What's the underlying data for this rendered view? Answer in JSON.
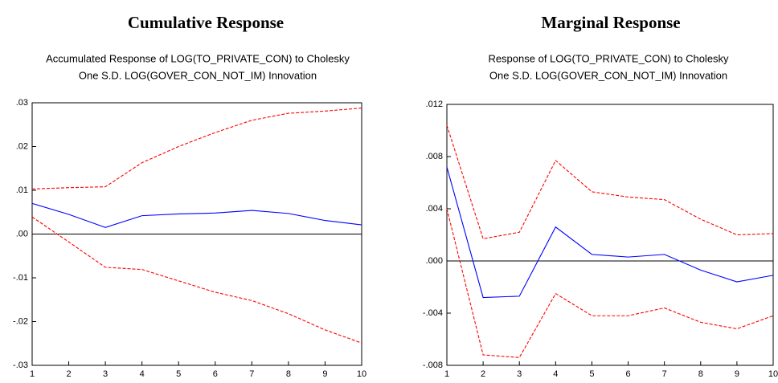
{
  "chart_data": [
    {
      "type": "line",
      "title": "Cumulative Response",
      "subtitle": [
        "Accumulated Response of LOG(TO_PRIVATE_CON) to Cholesky",
        "One S.D. LOG(GOVER_CON_NOT_IM) Innovation"
      ],
      "x": [
        1,
        2,
        3,
        4,
        5,
        6,
        7,
        8,
        9,
        10
      ],
      "xlim": [
        1,
        10
      ],
      "xticks": [
        1,
        2,
        3,
        4,
        5,
        6,
        7,
        8,
        9,
        10
      ],
      "ylim": [
        -0.03,
        0.03
      ],
      "yticks": [
        {
          "value": -0.03,
          "label": "-.03"
        },
        {
          "value": -0.02,
          "label": "-.02"
        },
        {
          "value": -0.01,
          "label": "-.01"
        },
        {
          "value": 0,
          "label": ".00"
        },
        {
          "value": 0.01,
          "label": ".01"
        },
        {
          "value": 0.02,
          "label": ".02"
        },
        {
          "value": 0.03,
          "label": ".03"
        }
      ],
      "reference_line": 0,
      "series": [
        {
          "color": "#0000ff",
          "dashed": false,
          "values": [
            0.007,
            0.0045,
            0.0015,
            0.0042,
            0.0046,
            0.0048,
            0.0054,
            0.0047,
            0.0031,
            0.0021
          ]
        },
        {
          "color": "#ff0000",
          "dashed": true,
          "values": [
            0.0103,
            0.0106,
            0.0108,
            0.0163,
            0.02,
            0.0232,
            0.026,
            0.0276,
            0.0281,
            0.0288
          ]
        },
        {
          "color": "#ff0000",
          "dashed": true,
          "values": [
            0.0039,
            -0.0018,
            -0.0076,
            -0.0081,
            -0.0107,
            -0.0133,
            -0.0152,
            -0.0182,
            -0.0219,
            -0.0249
          ]
        }
      ]
    },
    {
      "type": "line",
      "title": "Marginal Response",
      "subtitle": [
        "Response of LOG(TO_PRIVATE_CON) to Cholesky",
        "One S.D. LOG(GOVER_CON_NOT_IM) Innovation"
      ],
      "x": [
        1,
        2,
        3,
        4,
        5,
        6,
        7,
        8,
        9,
        10
      ],
      "xlim": [
        1,
        10
      ],
      "xticks": [
        1,
        2,
        3,
        4,
        5,
        6,
        7,
        8,
        9,
        10
      ],
      "ylim": [
        -0.008,
        0.012
      ],
      "yticks": [
        {
          "value": -0.008,
          "label": "-.008"
        },
        {
          "value": -0.004,
          "label": "-.004"
        },
        {
          "value": 0,
          "label": ".000"
        },
        {
          "value": 0.004,
          "label": ".004"
        },
        {
          "value": 0.008,
          "label": ".008"
        },
        {
          "value": 0.012,
          "label": ".012"
        }
      ],
      "reference_line": 0,
      "series": [
        {
          "color": "#0000ff",
          "dashed": false,
          "values": [
            0.0072,
            -0.0028,
            -0.0027,
            0.0026,
            0.0005,
            0.0003,
            0.0005,
            -0.0007,
            -0.0016,
            -0.0011
          ]
        },
        {
          "color": "#ff0000",
          "dashed": true,
          "values": [
            0.0104,
            0.0017,
            0.0022,
            0.0077,
            0.0053,
            0.0049,
            0.0047,
            0.0032,
            0.002,
            0.0021
          ]
        },
        {
          "color": "#ff0000",
          "dashed": true,
          "values": [
            0.004,
            -0.0072,
            -0.0074,
            -0.0025,
            -0.0042,
            -0.0042,
            -0.0036,
            -0.0047,
            -0.0052,
            -0.0042
          ]
        }
      ]
    }
  ]
}
